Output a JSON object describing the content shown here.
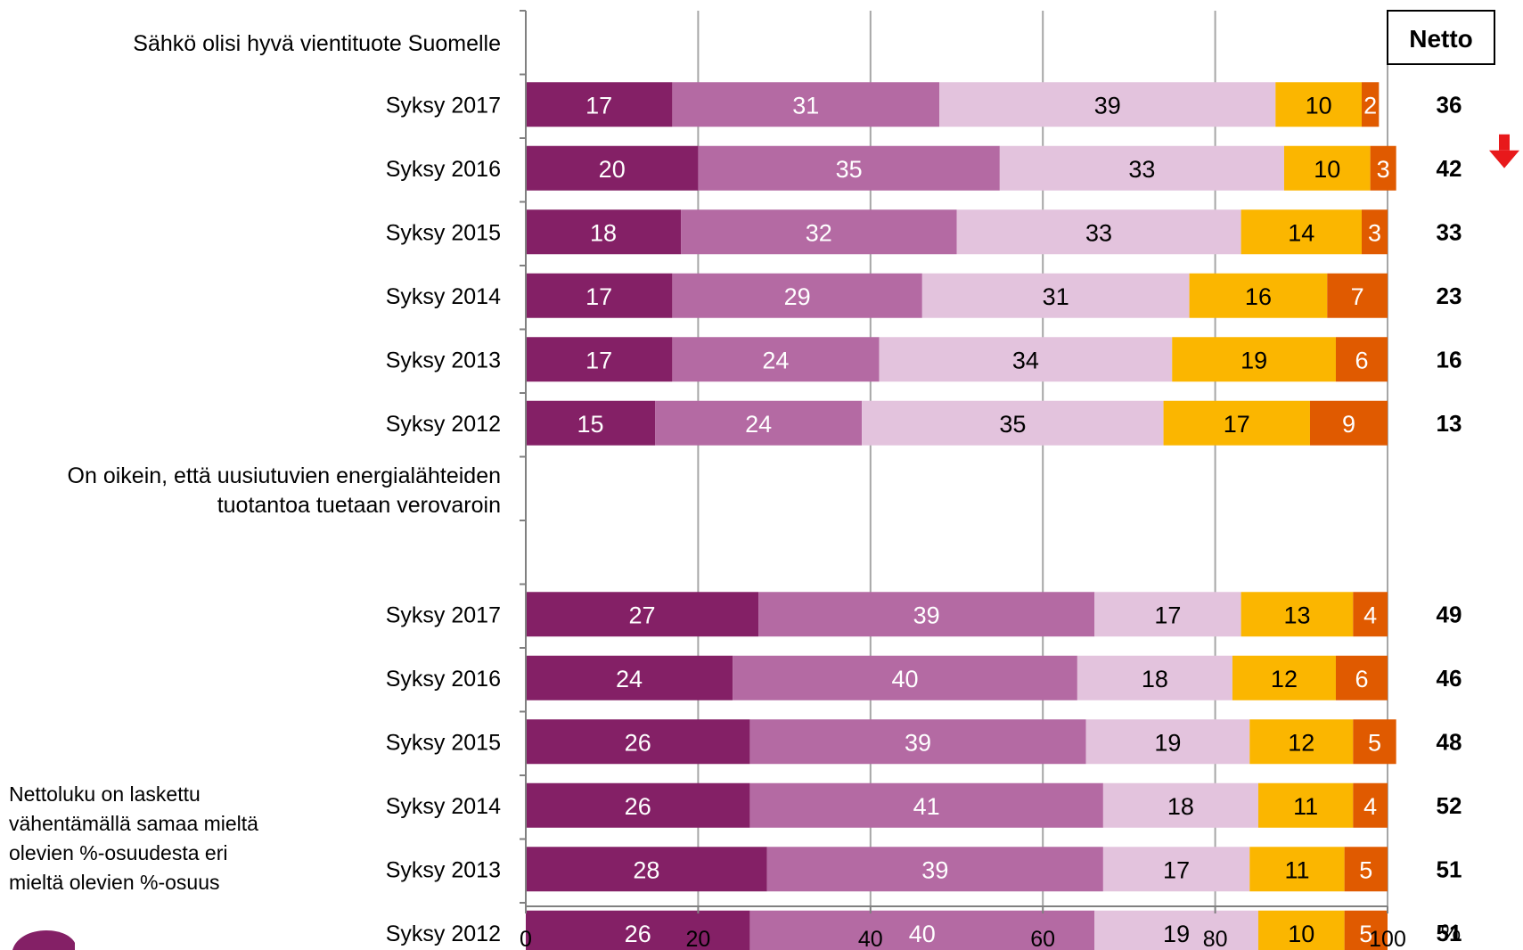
{
  "chart_data": {
    "type": "bar",
    "orientation": "horizontal",
    "stacked": true,
    "xlim": [
      0,
      100
    ],
    "x_ticks": [
      "0",
      "20",
      "40",
      "60",
      "80",
      "100"
    ],
    "x_unit": "%",
    "grid": "vertical",
    "segment_colors": [
      "#842066",
      "#b46aa3",
      "#e3c3dd",
      "#fbb600",
      "#e05a00"
    ],
    "segment_text_colors": [
      "#ffffff",
      "#ffffff",
      "#000000",
      "#000000",
      "#ffffff"
    ],
    "netto_header": "Netto",
    "trend_arrow": {
      "direction": "down",
      "color": "#e8191b",
      "row": 1
    },
    "groups": [
      {
        "title_lines": [
          "Sähkö olisi hyvä vientituote Suomelle"
        ],
        "rows": [
          {
            "label": "Syksy 2017",
            "values": [
              17,
              31,
              39,
              10,
              2
            ],
            "netto": "36"
          },
          {
            "label": "Syksy 2016",
            "values": [
              20,
              35,
              33,
              10,
              3
            ],
            "netto": "42"
          },
          {
            "label": "Syksy 2015",
            "values": [
              18,
              32,
              33,
              14,
              3
            ],
            "netto": "33"
          },
          {
            "label": "Syksy 2014",
            "values": [
              17,
              29,
              31,
              16,
              7
            ],
            "netto": "23"
          },
          {
            "label": "Syksy 2013",
            "values": [
              17,
              24,
              34,
              19,
              6
            ],
            "netto": "16"
          },
          {
            "label": "Syksy 2012",
            "values": [
              15,
              24,
              35,
              17,
              9
            ],
            "netto": "13"
          }
        ]
      },
      {
        "title_lines": [
          "On oikein, että uusiutuvien energialähteiden",
          "tuotantoa tuetaan verovaroin"
        ],
        "rows": [
          {
            "label": "Syksy 2017",
            "values": [
              27,
              39,
              17,
              13,
              4
            ],
            "netto": "49"
          },
          {
            "label": "Syksy 2016",
            "values": [
              24,
              40,
              18,
              12,
              6
            ],
            "netto": "46"
          },
          {
            "label": "Syksy 2015",
            "values": [
              26,
              39,
              19,
              12,
              5
            ],
            "netto": "48"
          },
          {
            "label": "Syksy 2014",
            "values": [
              26,
              41,
              18,
              11,
              4
            ],
            "netto": "52"
          },
          {
            "label": "Syksy 2013",
            "values": [
              28,
              39,
              17,
              11,
              5
            ],
            "netto": "51"
          },
          {
            "label": "Syksy 2012",
            "values": [
              26,
              40,
              19,
              10,
              5
            ],
            "netto": "51"
          }
        ]
      }
    ]
  },
  "footnote": {
    "lines": [
      "Nettoluku on laskettu",
      "vähentämällä samaa mieltä",
      "olevien %-osuudesta eri",
      "mieltä olevien %-osuus"
    ]
  },
  "logo": {
    "color": "#842066"
  }
}
